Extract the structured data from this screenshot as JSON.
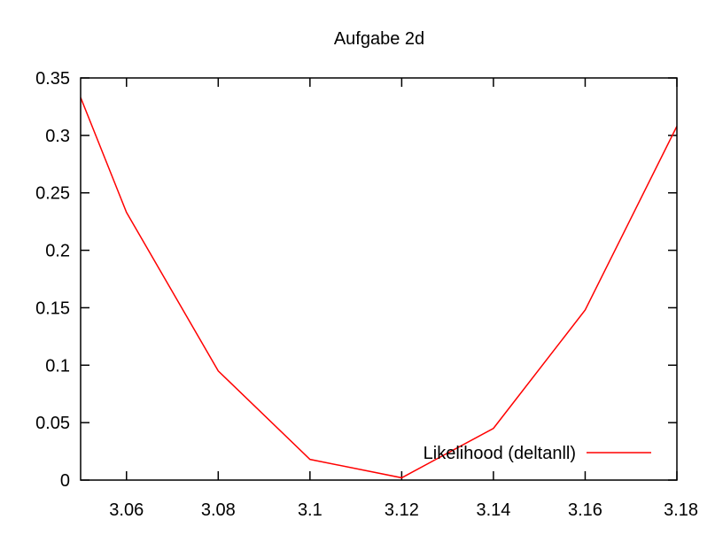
{
  "chart_data": {
    "type": "line",
    "title": "Aufgabe 2d",
    "xlabel": "",
    "ylabel": "",
    "xlim": [
      3.05,
      3.18
    ],
    "ylim": [
      0,
      0.35
    ],
    "xticks": [
      3.06,
      3.08,
      3.1,
      3.12,
      3.14,
      3.16,
      3.18
    ],
    "xtick_labels": [
      "3.06",
      "3.08",
      "3.1",
      "3.12",
      "3.14",
      "3.16",
      "3.18"
    ],
    "yticks": [
      0,
      0.05,
      0.1,
      0.15,
      0.2,
      0.25,
      0.3,
      0.35
    ],
    "ytick_labels": [
      "0",
      "0.05",
      "0.1",
      "0.15",
      "0.2",
      "0.25",
      "0.3",
      "0.35"
    ],
    "grid": false,
    "legend_position": "bottom-right",
    "series": [
      {
        "name": "Likelihood (deltanll)",
        "color": "#ff0000",
        "x": [
          3.05,
          3.06,
          3.08,
          3.1,
          3.12,
          3.14,
          3.16,
          3.18
        ],
        "y": [
          0.333,
          0.233,
          0.095,
          0.018,
          0.002,
          0.045,
          0.148,
          0.308
        ]
      }
    ]
  }
}
